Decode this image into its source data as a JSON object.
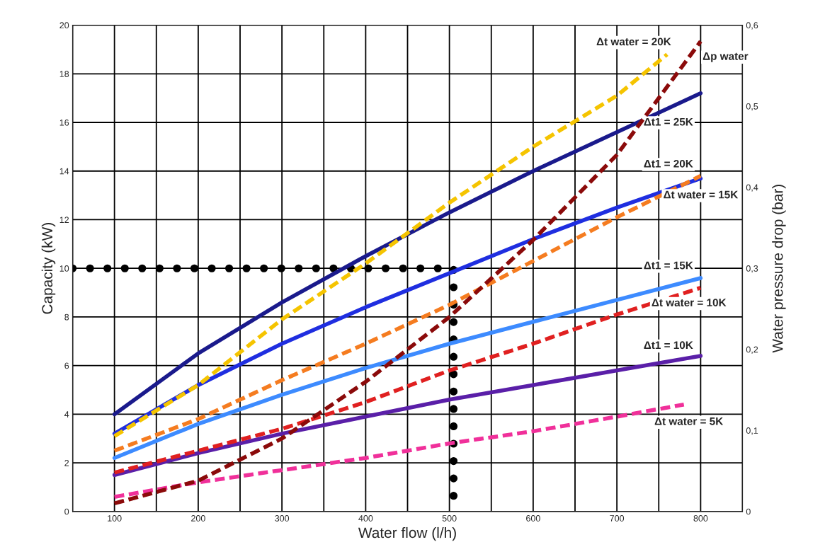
{
  "chart_data": {
    "type": "line",
    "xlabel": "Water flow (l/h)",
    "ylabel": "Capacity (kW)",
    "y2label": "Water pressure drop (bar)",
    "xlim": [
      50,
      850
    ],
    "xticks": [
      {
        "value": 50,
        "label": null
      },
      100,
      {
        "value": 150,
        "label": null
      },
      200,
      {
        "value": 250,
        "label": null
      },
      300,
      {
        "value": 350,
        "label": null
      },
      400,
      {
        "value": 450,
        "label": null
      },
      500,
      {
        "value": 550,
        "label": null
      },
      600,
      {
        "value": 650,
        "label": null
      },
      700,
      {
        "value": 750,
        "label": null
      },
      800,
      {
        "value": 850,
        "label": null
      }
    ],
    "ylim": [
      0,
      20
    ],
    "yticks": [
      0,
      2,
      4,
      6,
      8,
      10,
      12,
      14,
      16,
      18,
      20
    ],
    "y2lim": [
      0,
      0.6
    ],
    "y2ticks": [
      {
        "value": 0,
        "label": "0"
      },
      {
        "value": 0.1,
        "label": "0,1"
      },
      {
        "value": 0.2,
        "label": "0,2"
      },
      {
        "value": 0.3,
        "label": "0,3"
      },
      {
        "value": 0.4,
        "label": "0,4"
      },
      {
        "value": 0.5,
        "label": "0,5"
      },
      {
        "value": 0.6,
        "label": "0,6"
      }
    ],
    "grid": true,
    "series": [
      {
        "color": "#000000",
        "line_style": "dotted",
        "x": [
          50,
          505,
          505
        ],
        "values": [
          10,
          10,
          0
        ]
      },
      {
        "name": "Δt1 = 25K",
        "color": "#1a1a8c",
        "line_style": "solid",
        "x": [
          100,
          200,
          300,
          400,
          500,
          600,
          700,
          800
        ],
        "values": [
          4.0,
          6.5,
          8.6,
          10.5,
          12.3,
          14.0,
          15.6,
          17.2
        ]
      },
      {
        "name": "Δt1 = 20K",
        "color": "#1f2ee0",
        "line_style": "solid",
        "x": [
          100,
          200,
          300,
          400,
          500,
          600,
          700,
          800
        ],
        "values": [
          3.2,
          5.2,
          6.9,
          8.4,
          9.8,
          11.2,
          12.5,
          13.7
        ]
      },
      {
        "name": "Δt1 = 15K",
        "color": "#3d8bff",
        "line_style": "solid",
        "x": [
          100,
          200,
          300,
          400,
          500,
          600,
          700,
          800
        ],
        "values": [
          2.2,
          3.6,
          4.8,
          5.9,
          6.9,
          7.8,
          8.7,
          9.6
        ]
      },
      {
        "name": "Δt1 = 10K",
        "color": "#5a1fa8",
        "line_style": "solid",
        "x": [
          100,
          200,
          300,
          400,
          500,
          600,
          700,
          800
        ],
        "values": [
          1.5,
          2.4,
          3.2,
          3.9,
          4.6,
          5.2,
          5.8,
          6.4
        ]
      },
      {
        "name": "Δt water = 20K",
        "color": "#f5c400",
        "line_style": "dashed",
        "x": [
          100,
          200,
          300,
          400,
          500,
          600,
          700,
          760
        ],
        "values": [
          3.1,
          5.2,
          7.9,
          10.2,
          12.7,
          15.0,
          17.1,
          18.8
        ]
      },
      {
        "name": "Δt water = 15K",
        "color": "#f57c20",
        "line_style": "dashed",
        "x": [
          100,
          200,
          300,
          400,
          500,
          600,
          700,
          800
        ],
        "values": [
          2.5,
          3.8,
          5.4,
          6.9,
          8.5,
          10.3,
          12.1,
          13.8
        ]
      },
      {
        "name": "Δt water = 10K",
        "color": "#e02020",
        "line_style": "dashed",
        "x": [
          100,
          200,
          300,
          400,
          500,
          600,
          700,
          800
        ],
        "values": [
          1.6,
          2.5,
          3.4,
          4.5,
          5.8,
          6.9,
          8.1,
          9.2
        ]
      },
      {
        "name": "Δt water = 5K",
        "color": "#f0309a",
        "line_style": "dashed",
        "x": [
          100,
          200,
          300,
          400,
          500,
          600,
          700,
          780
        ],
        "values": [
          0.6,
          1.2,
          1.7,
          2.2,
          2.8,
          3.3,
          3.9,
          4.4
        ]
      },
      {
        "name": "Δp water",
        "color": "#8b0a0a",
        "line_style": "dashed",
        "axis": "y2",
        "x": [
          100,
          200,
          300,
          400,
          500,
          600,
          700,
          800
        ],
        "values": [
          0.01,
          0.038,
          0.09,
          0.16,
          0.24,
          0.335,
          0.44,
          0.58
        ]
      }
    ]
  }
}
